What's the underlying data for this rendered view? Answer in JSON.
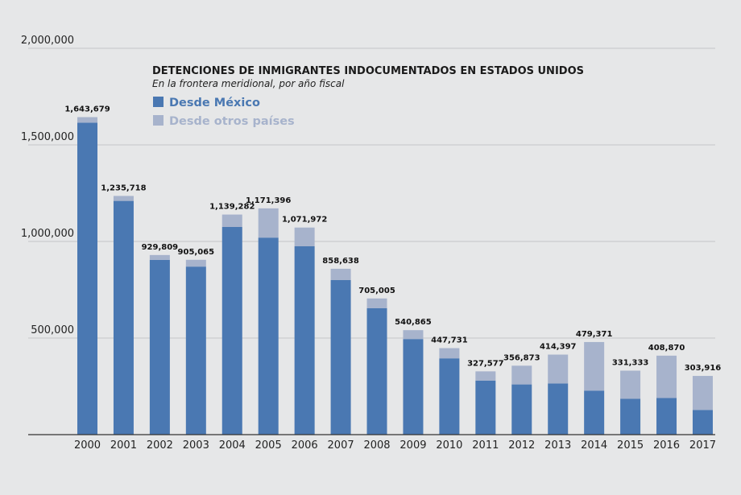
{
  "chart_data": {
    "type": "bar",
    "stacked": true,
    "title": "DETENCIONES DE INMIGRANTES INDOCUMENTADOS EN ESTADOS UNIDOS",
    "subtitle": "En la frontera meridional, por año fiscal",
    "categories": [
      "2000",
      "2001",
      "2002",
      "2003",
      "2004",
      "2005",
      "2006",
      "2007",
      "2008",
      "2009",
      "2010",
      "2011",
      "2012",
      "2013",
      "2014",
      "2015",
      "2016",
      "2017"
    ],
    "totals": [
      1643679,
      1235718,
      929809,
      905065,
      1139282,
      1171396,
      1071972,
      858638,
      705005,
      540865,
      447731,
      327577,
      356873,
      414397,
      479371,
      331333,
      408870,
      303916
    ],
    "total_labels": [
      "1,643,679",
      "1,235,718",
      "929,809",
      "905,065",
      "1,139,282",
      "1,171,396",
      "1,071,972",
      "858,638",
      "705,005",
      "540,865",
      "447,731",
      "327,577",
      "356,873",
      "414,397",
      "479,371",
      "331,333",
      "408,870",
      "303,916"
    ],
    "series": [
      {
        "name": "Desde México",
        "color": "#4a78b2",
        "values": [
          1615000,
          1210000,
          905000,
          870000,
          1075000,
          1020000,
          975000,
          800000,
          655000,
          495000,
          395000,
          280000,
          260000,
          265000,
          228000,
          186000,
          190000,
          128000
        ]
      },
      {
        "name": "Desde otros países",
        "color": "#a7b3cc",
        "values": [
          28679,
          25718,
          24809,
          35065,
          64282,
          151396,
          96972,
          58638,
          50005,
          45865,
          52731,
          47577,
          96873,
          149397,
          251371,
          145333,
          218870,
          175916
        ]
      }
    ],
    "ylim": [
      0,
      2000000
    ],
    "yticks": [
      500000,
      1000000,
      1500000,
      2000000
    ],
    "ytick_labels": [
      "500,000",
      "1,000,000",
      "1,500,000",
      "2,000,000"
    ],
    "grid": true,
    "legend_position": "top-left"
  }
}
